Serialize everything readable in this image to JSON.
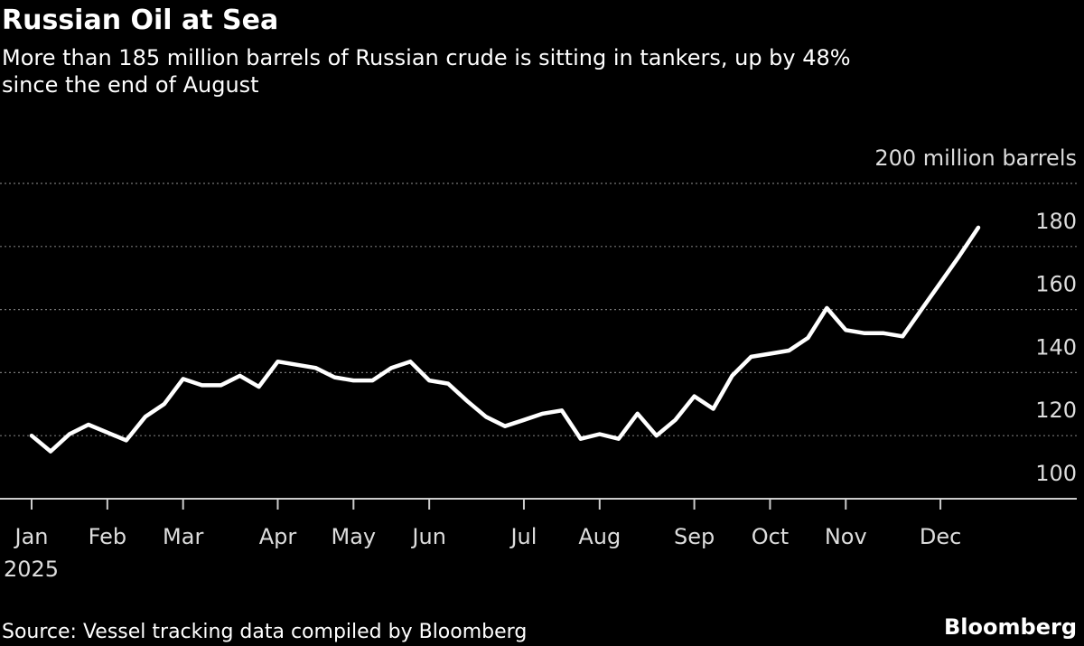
{
  "chart_data": {
    "type": "line",
    "title": "Russian Oil at Sea",
    "subtitle": "More than 185 million barrels of Russian crude is sitting in tankers, up by 48% since the end of August",
    "x_sublabel": "2025",
    "source": "Source: Vessel tracking data compiled by Bloomberg",
    "brand": "Bloomberg",
    "categories": [
      "Jan",
      null,
      null,
      null,
      "Feb",
      null,
      null,
      null,
      "Mar",
      null,
      null,
      null,
      null,
      "Apr",
      null,
      null,
      null,
      "May",
      null,
      null,
      null,
      "Jun",
      null,
      null,
      null,
      null,
      "Jul",
      null,
      null,
      null,
      "Aug",
      null,
      null,
      null,
      null,
      "Sep",
      null,
      null,
      null,
      "Oct",
      null,
      null,
      null,
      "Nov",
      null,
      null,
      null,
      null,
      "Dec",
      null,
      null
    ],
    "series": [
      {
        "color": "#ffffff",
        "values": [
          120,
          115,
          120.5,
          123.5,
          121,
          118.5,
          126,
          130,
          138,
          136,
          136,
          139,
          135.5,
          143.5,
          142.5,
          141.5,
          138.5,
          137.5,
          137.5,
          141.5,
          143.5,
          137.5,
          136.5,
          131,
          126,
          123,
          125,
          127,
          128,
          119,
          120.5,
          119,
          127,
          120,
          125,
          132.5,
          128.5,
          139,
          145,
          146,
          147,
          151,
          160.5,
          153.5,
          152.5,
          152.5,
          151.5,
          160,
          168.5,
          177,
          186
        ]
      }
    ],
    "ylim": [
      100,
      200
    ],
    "yticks": [
      100,
      120,
      140,
      160,
      180,
      {
        "value": 200,
        "label": "200 million barrels"
      }
    ],
    "grid": true
  }
}
